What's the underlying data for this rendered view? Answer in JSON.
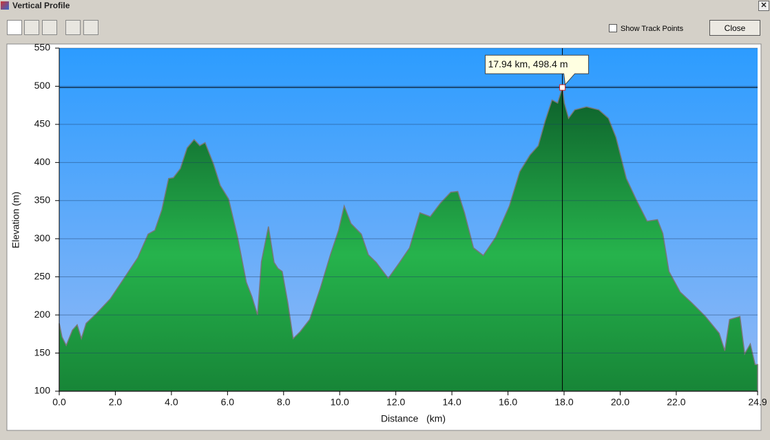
{
  "window": {
    "title": "Vertical Profile",
    "show_track_points": "Show Track Points",
    "close_button": "Close"
  },
  "chart_data": {
    "type": "area",
    "x_label": "Distance   (km)",
    "y_label": "Elevation (m)",
    "x": [
      0.0,
      0.1,
      0.25,
      0.47,
      0.64,
      0.79,
      0.96,
      1.33,
      1.82,
      2.31,
      2.8,
      3.17,
      3.41,
      3.66,
      3.9,
      4.07,
      4.32,
      4.56,
      4.81,
      5.01,
      5.2,
      5.5,
      5.74,
      6.04,
      6.36,
      6.67,
      6.87,
      7.07,
      7.21,
      7.46,
      7.66,
      7.8,
      7.95,
      8.15,
      8.34,
      8.59,
      8.93,
      9.3,
      9.67,
      9.96,
      10.16,
      10.4,
      10.77,
      11.02,
      11.3,
      11.73,
      12.12,
      12.49,
      12.86,
      13.23,
      13.6,
      13.96,
      14.21,
      14.45,
      14.77,
      15.12,
      15.56,
      16.05,
      16.42,
      16.79,
      17.08,
      17.33,
      17.57,
      17.77,
      17.94,
      18.01,
      18.16,
      18.38,
      18.8,
      19.24,
      19.58,
      19.85,
      20.22,
      20.59,
      20.96,
      21.33,
      21.52,
      21.74,
      22.14,
      22.55,
      23.04,
      23.53,
      23.73,
      23.9,
      24.27,
      24.44,
      24.64,
      24.81,
      24.9
    ],
    "values": [
      189,
      171,
      160,
      180,
      187,
      169,
      189,
      202,
      221,
      248,
      275,
      306,
      311,
      338,
      379,
      380,
      392,
      419,
      430,
      422,
      426,
      398,
      370,
      352,
      302,
      243,
      224,
      200,
      270,
      316,
      269,
      261,
      257,
      216,
      169,
      178,
      194,
      234,
      279,
      311,
      343,
      320,
      306,
      279,
      269,
      248,
      268,
      288,
      334,
      329,
      347,
      361,
      362,
      334,
      288,
      278,
      302,
      343,
      388,
      410,
      422,
      455,
      482,
      478,
      498.4,
      478,
      458,
      469,
      473,
      469,
      458,
      433,
      379,
      350,
      323,
      325,
      307,
      257,
      230,
      216,
      198,
      176,
      153,
      194,
      198,
      149,
      162,
      135,
      135
    ],
    "color": "#1f9a42",
    "xlim": [
      0,
      24.9
    ],
    "ylim": [
      100,
      550
    ],
    "xticks": [
      {
        "value": 0,
        "label": "0.0"
      },
      {
        "value": 2,
        "label": "2.0"
      },
      {
        "value": 4,
        "label": "4.0"
      },
      {
        "value": 6,
        "label": "6.0"
      },
      {
        "value": 8,
        "label": "8.0"
      },
      {
        "value": 10,
        "label": "10.0"
      },
      {
        "value": 12,
        "label": "12.0"
      },
      {
        "value": 14,
        "label": "14.0"
      },
      {
        "value": 16,
        "label": "16.0"
      },
      {
        "value": 18,
        "label": "18.0"
      },
      {
        "value": 20,
        "label": "20.0"
      },
      {
        "value": 22,
        "label": "22.0"
      },
      24.9
    ],
    "yticks": [
      100,
      150,
      200,
      250,
      300,
      350,
      400,
      450,
      500,
      550
    ],
    "grid": true,
    "cursor": {
      "x": 17.94,
      "y": 498.4,
      "label": "17.94 km, 498.4 m"
    }
  }
}
